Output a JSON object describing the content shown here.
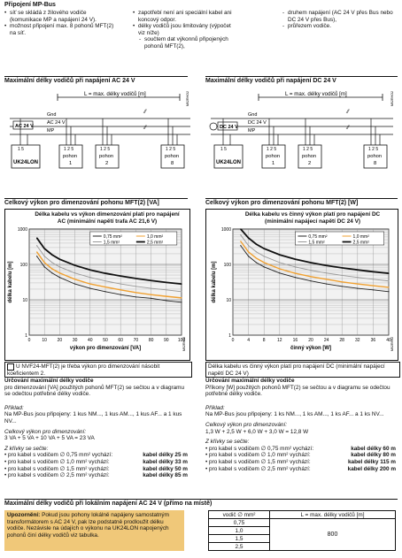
{
  "header": {
    "title": "Připojení MP-Bus",
    "col1": [
      "síť se skládá z žilového vodiče (komunikace MP a napájení 24 V).",
      "možnost připojení max. 8 pohonů MFT(2) na síť."
    ],
    "col2": [
      "zapotřebí není ani speciální kabel ani koncový odpor.",
      "délky vodičů jsou limitovány (výpočet viz níže)"
    ],
    "col2_dash": "součtem dat výkonnů připojených pohonů MFT(2),",
    "col3_dash": [
      "druhem napájení (AC 24 V přes Bus nebo DC 24 V přes Bus),",
      "průřezem vodiče."
    ]
  },
  "wiring": {
    "left_title": "Maximální délky vodičů při napájení AC 24 V",
    "right_title": "Maximální délky vodičů při napájení DC 24 V",
    "length_label": "L = max. délky vodičů [m]",
    "gnd": "Gnd",
    "ac_label": "AC 24 V",
    "dc_label": "DC 24 V",
    "mp": "MP",
    "controller": "UK24LON",
    "term_ctrl": "1 5",
    "term_act": "1 2 5",
    "pohon": "pohon",
    "actuators": [
      "1",
      "2",
      "8"
    ],
    "code_left": "M02RHO2",
    "code_right": "M02RHO2"
  },
  "left_chart_section": {
    "title": "Celkový výkon pro dimenzování pohonu MFT(2) [VA]",
    "note": "U NVF24-MFT(2) je třeba výkon pro dimenzování násobit koeficientem 2.",
    "code": "M02RH02"
  },
  "right_chart_section": {
    "title": "Celkový výkon pro dimenzování pohonu MFT(2) [W]",
    "note": "Délka kabelu vs činný výkon platí pro napájení DC (minimální napájecí napětí DC 24 V)",
    "code": "M02RH02"
  },
  "chart_data": [
    {
      "type": "line",
      "title": "Délka kabelu vs výkon dimenzování platí pro napájení AC (minimální napětí trafa AC 21,6 V)",
      "xlabel": "výkon pro dimenzování [VA]",
      "ylabel": "délka kabelu [m]",
      "xlim": [
        0,
        100
      ],
      "ylim": [
        1,
        1000
      ],
      "yscale": "log",
      "xticks": [
        "0",
        "10",
        "20",
        "30",
        "40",
        "50",
        "60",
        "70",
        "80",
        "90",
        "100"
      ],
      "yticks": [
        "1000",
        "100",
        "10",
        "1"
      ],
      "grid": true,
      "legend": [
        "0,75 mm²",
        "1,0 mm²",
        "1,5 mm²",
        "2,5 mm²"
      ],
      "series": [
        {
          "name": "0,75 mm²",
          "color": "#222222",
          "x": [
            5,
            10,
            15,
            20,
            30,
            40,
            50,
            60,
            70,
            80,
            90,
            100
          ],
          "values": [
            170,
            85,
            57,
            43,
            28,
            21,
            17,
            14,
            12,
            11,
            9.5,
            8.5
          ]
        },
        {
          "name": "1,0 mm²",
          "color": "#f0a030",
          "x": [
            5,
            10,
            15,
            20,
            30,
            40,
            50,
            60,
            70,
            80,
            90,
            100
          ],
          "values": [
            225,
            113,
            75,
            57,
            38,
            28,
            23,
            19,
            16,
            14,
            12.5,
            11.3
          ]
        },
        {
          "name": "1,5 mm²",
          "color": "#999999",
          "x": [
            5,
            10,
            15,
            20,
            30,
            40,
            50,
            60,
            70,
            80,
            90,
            100
          ],
          "values": [
            340,
            170,
            113,
            85,
            57,
            43,
            34,
            28,
            24,
            21,
            19,
            17
          ]
        },
        {
          "name": "2,5 mm²",
          "color": "#111111",
          "x": [
            5,
            10,
            15,
            20,
            30,
            40,
            50,
            60,
            70,
            80,
            90,
            100
          ],
          "values": [
            560,
            280,
            187,
            140,
            94,
            70,
            56,
            47,
            40,
            35,
            31,
            28
          ]
        }
      ]
    },
    {
      "type": "line",
      "title": "Délka kabelu vs činný výkon platí pro napájení DC (minimální napájecí napětí DC 24 V)",
      "xlabel": "činný výkon [W]",
      "ylabel": "délka kabelu [m]",
      "xlim": [
        0,
        40
      ],
      "ylim": [
        1,
        1000
      ],
      "yscale": "log",
      "xticks": [
        "0",
        "4",
        "8",
        "12",
        "16",
        "20",
        "24",
        "28",
        "32",
        "36",
        "40"
      ],
      "yticks": [
        "1000",
        "100",
        "10",
        "1"
      ],
      "grid": true,
      "legend": [
        "0,75 mm²",
        "1,0 mm²",
        "1,5 mm²",
        "2,5 mm²"
      ],
      "series": [
        {
          "name": "0,75 mm²",
          "color": "#222222",
          "x": [
            2,
            4,
            6,
            8,
            12,
            16,
            20,
            24,
            28,
            32,
            36,
            40
          ],
          "values": [
            340,
            170,
            113,
            85,
            57,
            43,
            34,
            28,
            24,
            21,
            19,
            17
          ]
        },
        {
          "name": "1,0 mm²",
          "color": "#f0a030",
          "x": [
            2,
            4,
            6,
            8,
            12,
            16,
            20,
            24,
            28,
            32,
            36,
            40
          ],
          "values": [
            450,
            225,
            150,
            113,
            75,
            56,
            45,
            38,
            32,
            28,
            25,
            22.5
          ]
        },
        {
          "name": "1,5 mm²",
          "color": "#999999",
          "x": [
            2,
            4,
            6,
            8,
            12,
            16,
            20,
            24,
            28,
            32,
            36,
            40
          ],
          "values": [
            680,
            340,
            227,
            170,
            113,
            85,
            68,
            57,
            49,
            43,
            38,
            34
          ]
        },
        {
          "name": "2,5 mm²",
          "color": "#111111",
          "x": [
            2,
            4,
            6,
            8,
            12,
            16,
            20,
            24,
            28,
            32,
            36,
            40
          ],
          "values": [
            1000,
            560,
            373,
            280,
            187,
            140,
            112,
            93,
            80,
            70,
            62,
            56
          ]
        }
      ]
    }
  ],
  "left_calc": {
    "title": "Určování maximální délky vodiče",
    "desc": "pro dimenzování [VA] použitých pohonů MFT(2) se sečtou a v diagramu se odečtou potřebné délky vodiče.",
    "example_label": "Příklad:",
    "example": "Na MP-Bus jsou připojeny: 1 kus NM..., 1 kus AM..., 1 kus AF... a 1 kus NV...",
    "sum_label": "Celkový výkon pro dimenzování:",
    "sum": "3 VA + 5 VA + 10 VA + 5 VA = 23 VA",
    "graph_label": "Z křivky se sečte:",
    "rows": [
      {
        "text": "pro kabel s vodičem ∅ 0,75 mm² vychází:",
        "value": "kabel délky 25 m"
      },
      {
        "text": "pro kabel s vodičem ∅ 1,0 mm² vychází:",
        "value": "kabel délky 33 m"
      },
      {
        "text": "pro kabel s vodičem ∅ 1,5 mm² vychází:",
        "value": "kabel délky 50 m"
      },
      {
        "text": "pro kabel s vodičem ∅ 2,5 mm² vychází:",
        "value": "kabel délky 85 m"
      }
    ]
  },
  "right_calc": {
    "title": "Určování maximální délky vodiče",
    "desc": "Příkony [W] použitých pohonů MFT(2) se sečtou a v diagramu se odečtou potřebné délky vodiče.",
    "example_label": "Příklad:",
    "example": "Na MP-Bus jsou připojeny: 1 ks NM..., 1 ks AM..., 1 ks AF... a 1 ks NV...",
    "sum_label": "Celkový výkon pro dimenzování:",
    "sum": "1,3 W + 2,5 W + 6,0 W + 3,0 W = 12,8 W",
    "graph_label": "Z křivky se sečte:",
    "rows": [
      {
        "text": "pro kabel s vodičem ∅ 0,75 mm² vychází:",
        "value": "kabel délky 60 m"
      },
      {
        "text": "pro kabel s vodičem ∅ 1,0 mm² vychází:",
        "value": "kabel délky 80 m"
      },
      {
        "text": "pro kabel s vodičem ∅ 1,5 mm² vychází:",
        "value": "kabel délky 115 m"
      },
      {
        "text": "pro kabel s vodičem ∅ 2,5 mm² vychází:",
        "value": "kabel délky 200 m"
      }
    ]
  },
  "footer": {
    "title": "Maximální délky vodičů při lokálním napájení AC 24 V (přímo na místě)",
    "warning_label": "Upozornění:",
    "warning": "Pokud jsou pohony lokálně napájeny samostatným transformátorem s AC 24 V, pak lze podstatně prodloužit délku vodiče. Nezávisle na údajích o výkonu na UK24LON napojených pohonů činí délky vodičů viz tabulka.",
    "table_head": [
      "vodič ∅ mm²",
      "L = max. délky vodičů [m]"
    ],
    "table_rows": [
      "0,75",
      "1,0",
      "1,5",
      "2,5"
    ],
    "table_value": "800"
  }
}
